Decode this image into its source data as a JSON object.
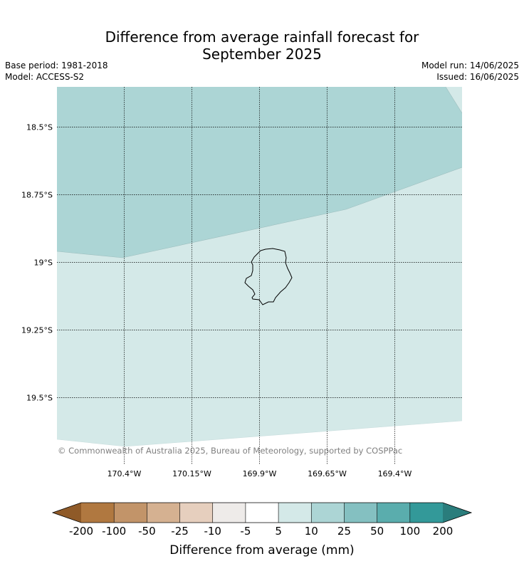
{
  "title_line1": "Difference from average rainfall forecast for",
  "title_line2": "September 2025",
  "base_period": "Base period: 1981-2018",
  "model": "Model: ACCESS-S2",
  "model_run": "Model run: 14/06/2025",
  "issued": "Issued: 16/06/2025",
  "copyright": "© Commonwealth of Australia 2025, Bureau of Meteorology, supported by COSPPac",
  "lat_labels": [
    "18.5°S",
    "18.75°S",
    "19°S",
    "19.25°S",
    "19.5°S"
  ],
  "lon_labels": [
    "170.4°W",
    "170.15°W",
    "169.9°W",
    "169.65°W",
    "169.4°W"
  ],
  "colorbar": {
    "label": "Difference from average (mm)",
    "ticks": [
      "-200",
      "-100",
      "-50",
      "-25",
      "-10",
      "-5",
      "5",
      "10",
      "25",
      "50",
      "100",
      "200"
    ],
    "colors": [
      "#8f5a28",
      "#b07840",
      "#c29469",
      "#d5b191",
      "#e6cfbe",
      "#eeebe9",
      "#ffffff",
      "#d4e9e8",
      "#acd5d5",
      "#84c0c1",
      "#5aadad",
      "#339999",
      "#2a7d7c"
    ]
  },
  "region_colors": {
    "band_10_25": "#acd5d5",
    "band_5_10": "#d4e9e8",
    "island_outline": "#000000"
  }
}
